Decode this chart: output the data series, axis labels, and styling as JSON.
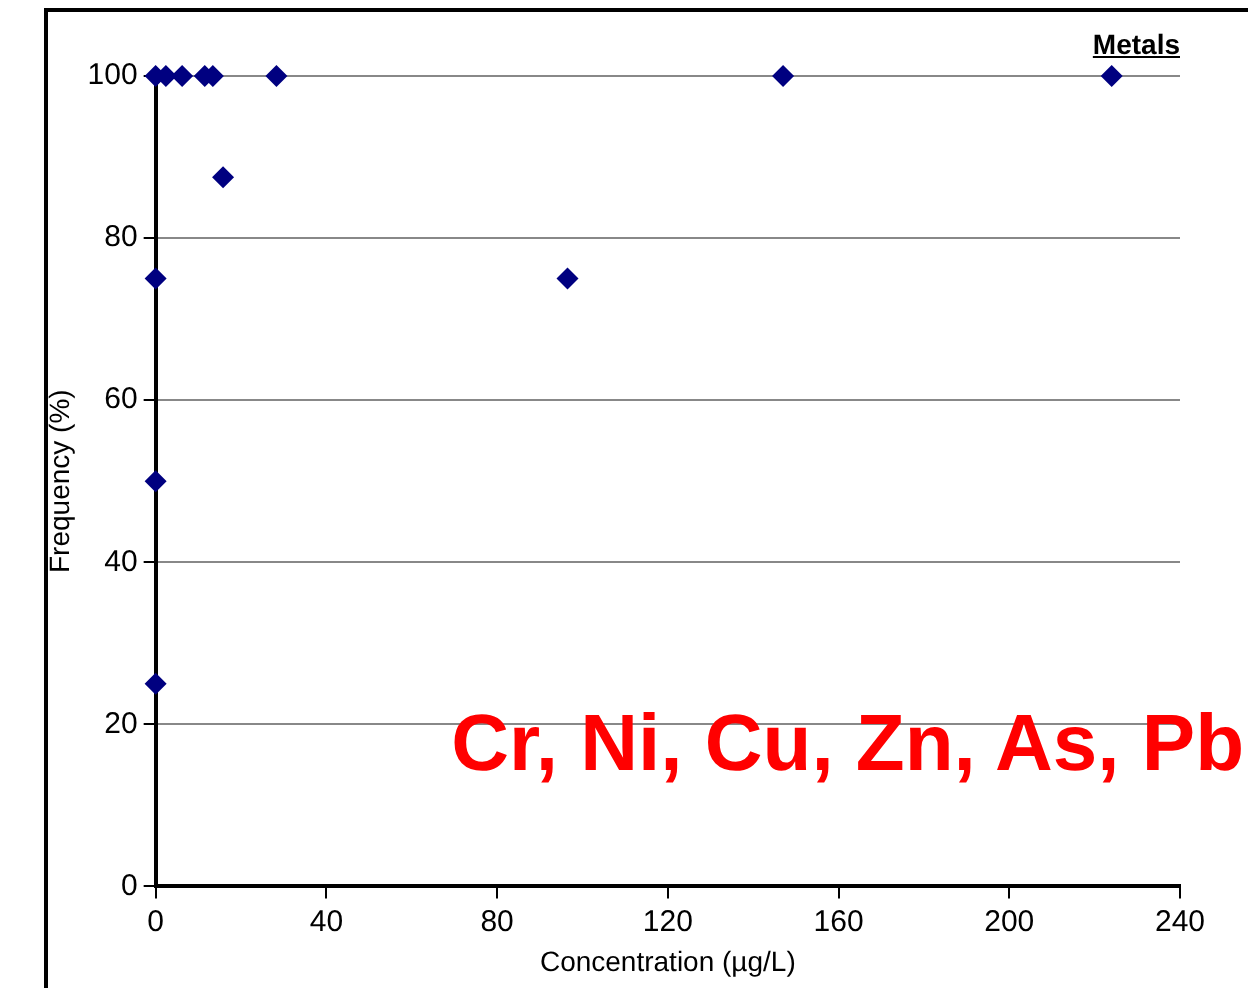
{
  "chart_data": {
    "type": "scatter",
    "title": "Metals",
    "xlabel": "Concentration (µg/L)",
    "ylabel": "Frequency (%)",
    "annotations": [
      "Cr, Ni, Cu, Zn, As, Pb"
    ],
    "series": [
      {
        "color": "#000080",
        "x": [
          0,
          2.4,
          6.2,
          11.5,
          13.4,
          28.3,
          147,
          224,
          15.8,
          96.5,
          0,
          0,
          0
        ],
        "values": [
          100,
          100,
          100,
          100,
          100,
          100,
          100,
          100,
          87.5,
          75,
          75,
          50,
          25
        ]
      }
    ],
    "xlim": [
      0,
      240
    ],
    "xticks": [
      0,
      40,
      80,
      120,
      160,
      200,
      240
    ],
    "ylim": [
      0,
      100
    ],
    "yticks": [
      0,
      20,
      40,
      60,
      80,
      100
    ],
    "grid": "y",
    "legend": false,
    "marker": "diamond"
  }
}
